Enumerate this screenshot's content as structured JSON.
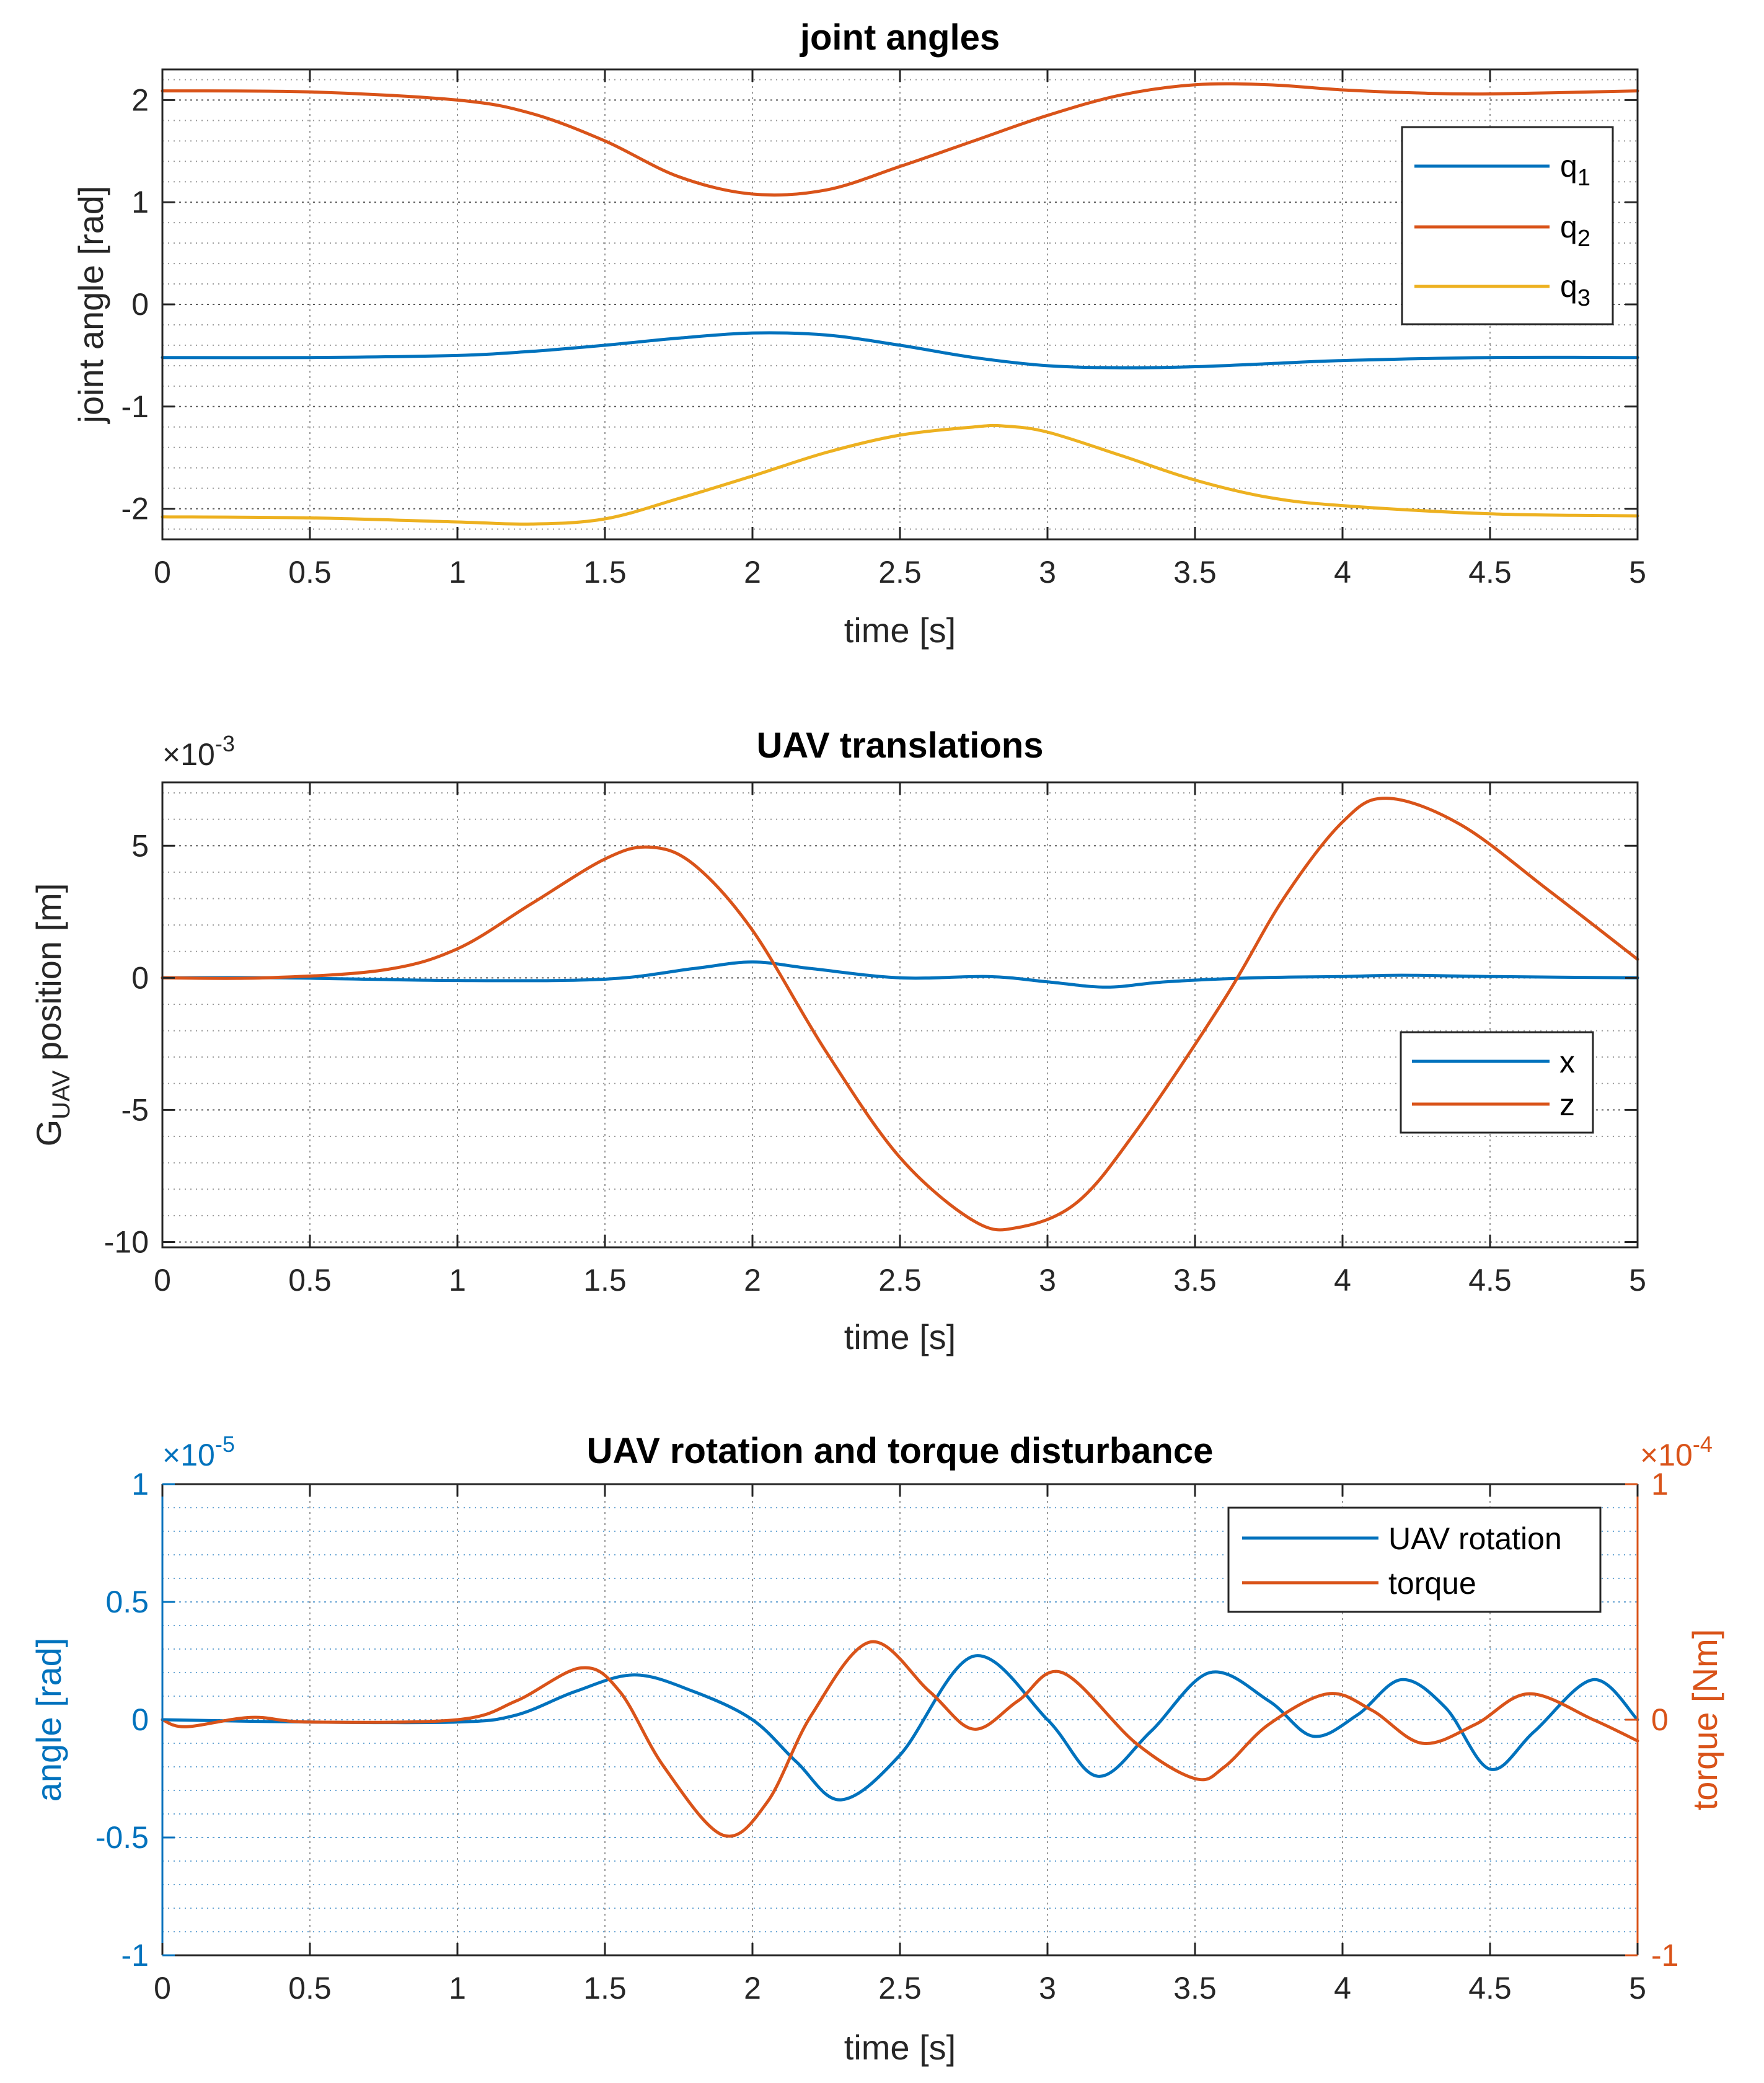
{
  "colors": {
    "blue": "#0072BD",
    "orange": "#D95319",
    "yellow": "#EDB120",
    "axis": "#262626",
    "grid": "#9a9a9a"
  },
  "chart_data": [
    {
      "type": "line",
      "title": "joint angles",
      "xlabel": "time [s]",
      "ylabel": "joint angle [rad]",
      "xlim": [
        0,
        5
      ],
      "ylim": [
        -2.3,
        2.3
      ],
      "xticks": [
        0,
        0.5,
        1,
        1.5,
        2,
        2.5,
        3,
        3.5,
        4,
        4.5,
        5
      ],
      "xtick_labels": [
        "0",
        "0.5",
        "1",
        "1.5",
        "2",
        "2.5",
        "3",
        "3.5",
        "4",
        "4.5",
        "5"
      ],
      "yticks": [
        -2,
        -1,
        0,
        1,
        2
      ],
      "ytick_labels": [
        "-2",
        "-1",
        "0",
        "1",
        "2"
      ],
      "grid": true,
      "minor_grid": true,
      "legend": {
        "position": "top-right",
        "entries": [
          "q",
          "q",
          "q"
        ],
        "subscripts": [
          "1",
          "2",
          "3"
        ]
      },
      "series": [
        {
          "name": "q1",
          "color": "blue",
          "x": [
            0,
            0.5,
            1,
            1.25,
            1.5,
            1.75,
            2,
            2.25,
            2.5,
            2.75,
            3,
            3.25,
            3.5,
            3.75,
            4,
            4.5,
            5
          ],
          "y": [
            -0.52,
            -0.52,
            -0.5,
            -0.46,
            -0.4,
            -0.33,
            -0.28,
            -0.3,
            -0.4,
            -0.52,
            -0.6,
            -0.62,
            -0.61,
            -0.58,
            -0.55,
            -0.52,
            -0.52
          ]
        },
        {
          "name": "q2",
          "color": "orange",
          "x": [
            0,
            0.5,
            1,
            1.25,
            1.5,
            1.75,
            2,
            2.25,
            2.5,
            2.75,
            3,
            3.25,
            3.5,
            3.75,
            4,
            4.25,
            4.5,
            5
          ],
          "y": [
            2.09,
            2.08,
            2.0,
            1.87,
            1.6,
            1.25,
            1.08,
            1.12,
            1.35,
            1.6,
            1.85,
            2.05,
            2.15,
            2.15,
            2.1,
            2.07,
            2.06,
            2.09
          ]
        },
        {
          "name": "q3",
          "color": "yellow",
          "x": [
            0,
            0.5,
            1,
            1.25,
            1.5,
            1.75,
            2,
            2.25,
            2.5,
            2.75,
            2.85,
            3,
            3.25,
            3.5,
            3.75,
            4,
            4.5,
            5
          ],
          "y": [
            -2.08,
            -2.09,
            -2.13,
            -2.15,
            -2.1,
            -1.9,
            -1.68,
            -1.45,
            -1.28,
            -1.2,
            -1.19,
            -1.25,
            -1.48,
            -1.72,
            -1.89,
            -1.97,
            -2.05,
            -2.07
          ]
        }
      ]
    },
    {
      "type": "line",
      "title": "UAV translations",
      "xlabel": "time [s]",
      "ylabel": "G",
      "ylabel_sub": "UAV",
      "ylabel_rest": "position [m]",
      "y_multiplier": "×10",
      "y_exponent": "-3",
      "xlim": [
        0,
        5
      ],
      "ylim": [
        -10.2,
        7.4
      ],
      "xticks": [
        0,
        0.5,
        1,
        1.5,
        2,
        2.5,
        3,
        3.5,
        4,
        4.5,
        5
      ],
      "xtick_labels": [
        "0",
        "0.5",
        "1",
        "1.5",
        "2",
        "2.5",
        "3",
        "3.5",
        "4",
        "4.5",
        "5"
      ],
      "yticks": [
        -10,
        -5,
        0,
        5
      ],
      "ytick_labels": [
        "-10",
        "-5",
        "0",
        "5"
      ],
      "grid": true,
      "minor_grid": true,
      "legend": {
        "position": "right",
        "entries": [
          "x",
          "z"
        ]
      },
      "series": [
        {
          "name": "x",
          "color": "blue",
          "x": [
            0,
            0.4,
            1,
            1.5,
            1.8,
            2.0,
            2.2,
            2.5,
            2.8,
            3.0,
            3.2,
            3.4,
            3.7,
            4.0,
            4.2,
            4.5,
            5
          ],
          "y": [
            0,
            0,
            -0.1,
            -0.05,
            0.35,
            0.6,
            0.35,
            0,
            0.05,
            -0.15,
            -0.35,
            -0.15,
            0,
            0.05,
            0.1,
            0.05,
            0
          ]
        },
        {
          "name": "z",
          "color": "orange",
          "x": [
            0,
            0.35,
            0.75,
            1.0,
            1.25,
            1.5,
            1.65,
            1.8,
            2.0,
            2.25,
            2.5,
            2.75,
            2.9,
            3.1,
            3.3,
            3.6,
            3.8,
            4.0,
            4.15,
            4.4,
            4.7,
            5
          ],
          "y": [
            0,
            0,
            0.3,
            1.1,
            2.8,
            4.5,
            4.95,
            4.3,
            1.8,
            -2.8,
            -6.8,
            -9.2,
            -9.45,
            -8.5,
            -5.8,
            -0.8,
            3.0,
            5.9,
            6.8,
            5.8,
            3.3,
            0.7
          ]
        }
      ]
    },
    {
      "type": "line",
      "title": "UAV rotation and torque disturbance",
      "xlabel": "time [s]",
      "ylabel_left": "angle [rad]",
      "ylabel_right": "torque [Nm]",
      "y_multiplier_left": "×10",
      "y_exponent_left": "-5",
      "y_multiplier_right": "×10",
      "y_exponent_right": "-4",
      "xlim": [
        0,
        5
      ],
      "ylim_left": [
        -1,
        1
      ],
      "ylim_right": [
        -1,
        1
      ],
      "xticks": [
        0,
        0.5,
        1,
        1.5,
        2,
        2.5,
        3,
        3.5,
        4,
        4.5,
        5
      ],
      "xtick_labels": [
        "0",
        "0.5",
        "1",
        "1.5",
        "2",
        "2.5",
        "3",
        "3.5",
        "4",
        "4.5",
        "5"
      ],
      "yticks_left": [
        -1,
        -0.5,
        0,
        0.5,
        1
      ],
      "ytick_labels_left": [
        "-1",
        "-0.5",
        "0",
        "0.5",
        "1"
      ],
      "yticks_right": [
        -1,
        0,
        1
      ],
      "ytick_labels_right": [
        "-1",
        "0",
        "1"
      ],
      "grid": true,
      "minor_grid": true,
      "legend": {
        "position": "top-right",
        "entries": [
          "UAV rotation",
          "torque"
        ]
      },
      "series": [
        {
          "name": "UAV rotation",
          "axis": "left",
          "color": "blue",
          "x": [
            0,
            0.5,
            1,
            1.2,
            1.4,
            1.6,
            1.8,
            2.0,
            2.15,
            2.3,
            2.5,
            2.75,
            3.0,
            3.17,
            3.35,
            3.55,
            3.75,
            3.9,
            4.05,
            4.2,
            4.35,
            4.5,
            4.65,
            4.85,
            5
          ],
          "y": [
            0,
            -0.01,
            -0.01,
            0.02,
            0.12,
            0.19,
            0.12,
            0.0,
            -0.18,
            -0.34,
            -0.15,
            0.27,
            0.0,
            -0.24,
            -0.05,
            0.2,
            0.08,
            -0.07,
            0.02,
            0.17,
            0.05,
            -0.21,
            -0.05,
            0.17,
            0
          ]
        },
        {
          "name": "torque",
          "axis": "right",
          "color": "orange",
          "x": [
            0,
            0.08,
            0.3,
            0.5,
            1.0,
            1.2,
            1.42,
            1.55,
            1.7,
            1.9,
            2.05,
            2.2,
            2.4,
            2.6,
            2.75,
            2.9,
            3.05,
            3.3,
            3.5,
            3.6,
            3.75,
            3.95,
            4.1,
            4.27,
            4.45,
            4.63,
            4.85,
            5
          ],
          "y": [
            0,
            -0.03,
            0.01,
            -0.01,
            0.0,
            0.08,
            0.22,
            0.12,
            -0.2,
            -0.49,
            -0.35,
            0.02,
            0.33,
            0.12,
            -0.04,
            0.08,
            0.2,
            -0.1,
            -0.25,
            -0.2,
            -0.02,
            0.11,
            0.04,
            -0.1,
            -0.02,
            0.11,
            0.0,
            -0.09
          ]
        }
      ]
    }
  ]
}
